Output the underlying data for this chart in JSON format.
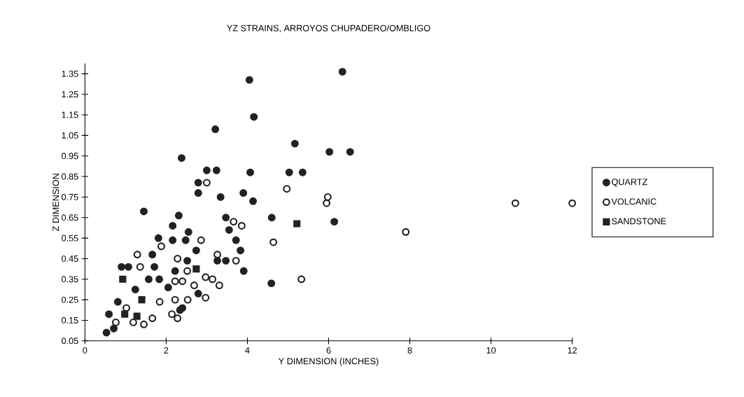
{
  "chart_data": {
    "type": "scatter",
    "title": "YZ STRAINS, ARROYOS CHUPADERO/OMBLIGO",
    "xlabel": "Y DIMENSION (INCHES)",
    "ylabel": "Z DIMENSION",
    "xlim": [
      0,
      12
    ],
    "ylim": [
      0.05,
      1.4
    ],
    "xticks": [
      0,
      2,
      4,
      6,
      8,
      10,
      12
    ],
    "yticks": [
      0.05,
      0.15,
      0.25,
      0.35,
      0.45,
      0.55,
      0.65,
      0.75,
      0.85,
      0.95,
      1.05,
      1.15,
      1.25,
      1.35
    ],
    "legend": "right",
    "series": [
      {
        "name": "QUARTZ",
        "color": "#222222",
        "marker": "circle",
        "x": [
          4.05,
          6.34,
          4.16,
          3.21,
          2.38,
          5.17,
          6.02,
          6.53,
          3.0,
          3.24,
          4.07,
          5.03,
          5.36,
          2.79,
          2.79,
          3.34,
          3.9,
          4.14,
          1.45,
          4.6,
          6.14,
          3.47,
          3.55,
          3.72,
          3.83,
          3.47,
          3.91,
          4.59,
          2.55,
          2.48,
          2.74,
          2.52,
          3.26,
          2.79,
          2.4,
          2.31,
          2.16,
          1.81,
          2.16,
          1.66,
          0.9,
          1.07,
          1.71,
          2.22,
          1.57,
          1.83,
          2.05,
          1.24,
          0.81,
          2.34,
          0.59,
          0.71,
          0.53
        ],
        "values": [
          1.32,
          1.36,
          1.14,
          1.08,
          0.94,
          1.01,
          0.97,
          0.97,
          0.88,
          0.88,
          0.87,
          0.87,
          0.87,
          0.82,
          0.77,
          0.75,
          0.77,
          0.73,
          0.68,
          0.65,
          0.63,
          0.65,
          0.59,
          0.54,
          0.49,
          0.44,
          0.39,
          0.33,
          0.58,
          0.54,
          0.49,
          0.44,
          0.44,
          0.28,
          0.21,
          0.66,
          0.61,
          0.55,
          0.54,
          0.47,
          0.41,
          0.41,
          0.41,
          0.39,
          0.35,
          0.35,
          0.31,
          0.3,
          0.24,
          0.2,
          0.18,
          0.11,
          0.09
        ]
      },
      {
        "name": "VOLCANIC",
        "color": "#222222",
        "marker": "open circle",
        "x": [
          3.0,
          3.66,
          3.86,
          3.26,
          3.72,
          4.64,
          2.97,
          3.31,
          2.69,
          2.53,
          2.97,
          3.14,
          2.4,
          4.97,
          5.95,
          10.6,
          12.0,
          7.9,
          5.33,
          1.88,
          1.29,
          2.28,
          1.36,
          2.52,
          2.22,
          1.84,
          2.22,
          1.02,
          1.66,
          2.14,
          2.28,
          0.76,
          1.19,
          1.45,
          5.98,
          2.86
        ],
        "values": [
          0.82,
          0.63,
          0.61,
          0.47,
          0.44,
          0.53,
          0.36,
          0.32,
          0.32,
          0.25,
          0.26,
          0.35,
          0.34,
          0.79,
          0.72,
          0.72,
          0.72,
          0.58,
          0.35,
          0.51,
          0.47,
          0.45,
          0.41,
          0.39,
          0.34,
          0.24,
          0.25,
          0.21,
          0.16,
          0.18,
          0.16,
          0.14,
          0.14,
          0.13,
          0.75,
          0.54
        ]
      },
      {
        "name": "SANDSTONE",
        "color": "#222222",
        "marker": "square",
        "x": [
          0.93,
          1.4,
          0.98,
          1.28,
          2.74,
          5.22
        ],
        "values": [
          0.35,
          0.25,
          0.18,
          0.17,
          0.4,
          0.62
        ]
      }
    ]
  }
}
